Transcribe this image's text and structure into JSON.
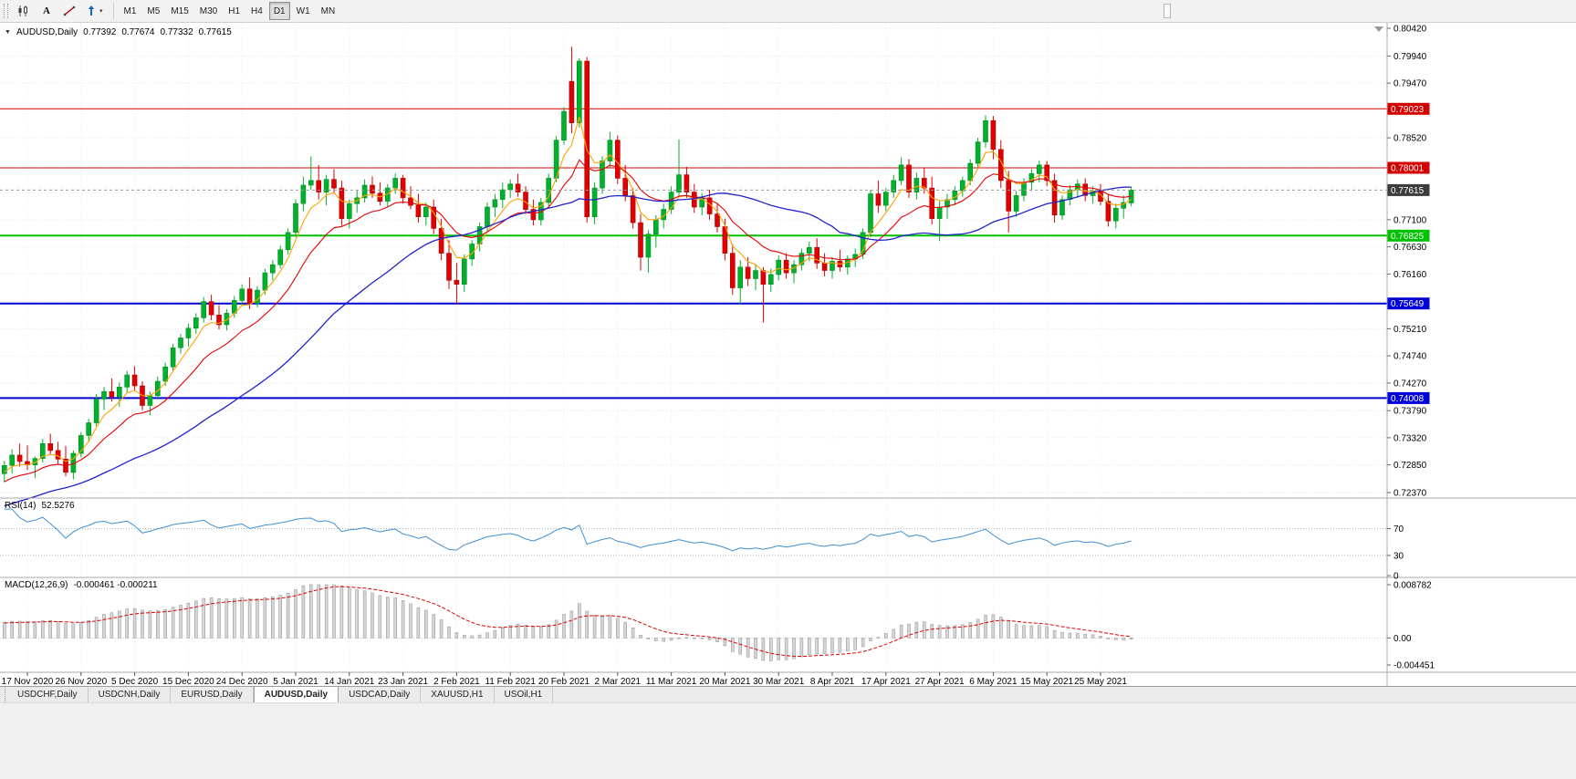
{
  "toolbar": {
    "timeframes": [
      "M1",
      "M5",
      "M15",
      "M30",
      "H1",
      "H4",
      "D1",
      "W1",
      "MN"
    ],
    "active_timeframe": "D1",
    "tool_icons": [
      "candlestick-chart-icon",
      "text-tool-icon",
      "trendline-tool-icon",
      "arrow-tools-dropdown"
    ]
  },
  "chart_header": {
    "symbol": "AUDUSD,Daily",
    "open": "0.77392",
    "high": "0.77674",
    "low": "0.77332",
    "close": "0.77615"
  },
  "chart_data": {
    "type": "candlestick",
    "symbol": "AUDUSD",
    "timeframe": "Daily",
    "colors": {
      "up": "#00b22b",
      "down": "#e10000",
      "up_border": "#008a22",
      "down_border": "#a80000",
      "grid": "#e7e7e7",
      "axis_text": "#000000"
    },
    "y_ticks": [
      0.8042,
      0.7994,
      0.7947,
      0.7899,
      0.7852,
      0.7804,
      0.7757,
      0.771,
      0.7663,
      0.7616,
      0.7569,
      0.7521,
      0.7474,
      0.7427,
      0.7379,
      0.7332,
      0.7285,
      0.7237
    ],
    "y_ticks_hidden": [
      0.7899,
      0.7804,
      0.7757,
      0.7569
    ],
    "x_labels": [
      "17 Nov 2020",
      "26 Nov 2020",
      "5 Dec 2020",
      "15 Dec 2020",
      "24 Dec 2020",
      "5 Jan 2021",
      "14 Jan 2021",
      "23 Jan 2021",
      "2 Feb 2021",
      "11 Feb 2021",
      "20 Feb 2021",
      "2 Mar 2021",
      "11 Mar 2021",
      "20 Mar 2021",
      "30 Mar 2021",
      "8 Apr 2021",
      "17 Apr 2021",
      "27 Apr 2021",
      "6 May 2021",
      "15 May 2021",
      "25 May 2021"
    ],
    "x_label_first_index": 3,
    "x_label_step": 7,
    "horizontal_lines": [
      {
        "price": 0.79023,
        "label": "0.79023",
        "color": "#d40000",
        "width": 1
      },
      {
        "price": 0.78001,
        "label": "0.78001",
        "color": "#d40000",
        "width": 1
      },
      {
        "price": 0.76825,
        "label": "0.76825",
        "color": "#00c200",
        "width": 2
      },
      {
        "price": 0.75649,
        "label": "0.75649",
        "color": "#0000d8",
        "width": 2
      },
      {
        "price": 0.74008,
        "label": "0.74008",
        "color": "#0000d8",
        "width": 2
      }
    ],
    "current_price": {
      "price": 0.77615,
      "label": "0.77615",
      "tag_color": "#3c3c3c"
    },
    "moving_averages": [
      {
        "type": "ema",
        "period": 5,
        "color": "#ffa200"
      },
      {
        "type": "ema",
        "period": 13,
        "color": "#e80000"
      },
      {
        "type": "sma",
        "period": 34,
        "color": "#2222cc"
      }
    ],
    "prehistory": {
      "start": 0.712,
      "end": 0.7275,
      "count": 40
    },
    "indicators": {
      "rsi": {
        "name": "RSI(14)",
        "period": 14,
        "value_label": "52.5276",
        "levels": [
          70,
          30
        ],
        "axis_labels": [
          70,
          30,
          0
        ],
        "color": "#3f8fd4"
      },
      "macd": {
        "name": "MACD(12,26,9)",
        "fast": 12,
        "slow": 26,
        "signal": 9,
        "value_labels": "-0.000461 -0.000211",
        "axis_max": 0.008782,
        "axis_zero": "0.00",
        "axis_min": -0.004451,
        "histogram_color": "#d6d6d6",
        "signal_color": "#e00000"
      }
    },
    "candles": [
      [
        0.727,
        0.7292,
        0.7255,
        0.7284
      ],
      [
        0.7284,
        0.7312,
        0.727,
        0.7302
      ],
      [
        0.7302,
        0.7322,
        0.7282,
        0.7291
      ],
      [
        0.7291,
        0.7319,
        0.7276,
        0.7285
      ],
      [
        0.7285,
        0.73,
        0.7262,
        0.7296
      ],
      [
        0.7296,
        0.733,
        0.7289,
        0.7322
      ],
      [
        0.7322,
        0.7339,
        0.7303,
        0.731
      ],
      [
        0.731,
        0.7325,
        0.7287,
        0.7295
      ],
      [
        0.7295,
        0.7318,
        0.7265,
        0.7272
      ],
      [
        0.7272,
        0.731,
        0.726,
        0.7305
      ],
      [
        0.7305,
        0.7342,
        0.7298,
        0.7336
      ],
      [
        0.7336,
        0.7365,
        0.7325,
        0.7358
      ],
      [
        0.7358,
        0.7408,
        0.7352,
        0.7399
      ],
      [
        0.7399,
        0.742,
        0.738,
        0.7412
      ],
      [
        0.7412,
        0.7435,
        0.7395,
        0.7403
      ],
      [
        0.7403,
        0.7428,
        0.7386,
        0.742
      ],
      [
        0.742,
        0.7448,
        0.741,
        0.7441
      ],
      [
        0.7441,
        0.7456,
        0.7414,
        0.7422
      ],
      [
        0.7422,
        0.743,
        0.738,
        0.7388
      ],
      [
        0.7388,
        0.7412,
        0.7371,
        0.7405
      ],
      [
        0.7405,
        0.7438,
        0.7398,
        0.743
      ],
      [
        0.743,
        0.7462,
        0.7422,
        0.7455
      ],
      [
        0.7455,
        0.7495,
        0.7448,
        0.7488
      ],
      [
        0.7488,
        0.7512,
        0.7478,
        0.7505
      ],
      [
        0.7505,
        0.753,
        0.749,
        0.7522
      ],
      [
        0.7522,
        0.7548,
        0.7512,
        0.754
      ],
      [
        0.754,
        0.7576,
        0.7532,
        0.7568
      ],
      [
        0.7568,
        0.758,
        0.7536,
        0.7545
      ],
      [
        0.7545,
        0.7562,
        0.752,
        0.7528
      ],
      [
        0.7528,
        0.7555,
        0.7518,
        0.7548
      ],
      [
        0.7548,
        0.7578,
        0.754,
        0.757
      ],
      [
        0.757,
        0.7598,
        0.7562,
        0.759
      ],
      [
        0.759,
        0.761,
        0.7555,
        0.7565
      ],
      [
        0.7565,
        0.7595,
        0.7558,
        0.7588
      ],
      [
        0.7588,
        0.7625,
        0.758,
        0.7618
      ],
      [
        0.7618,
        0.764,
        0.7605,
        0.7632
      ],
      [
        0.7632,
        0.7665,
        0.7625,
        0.7658
      ],
      [
        0.7658,
        0.7695,
        0.765,
        0.7688
      ],
      [
        0.7688,
        0.7745,
        0.768,
        0.7738
      ],
      [
        0.7738,
        0.7785,
        0.7725,
        0.777
      ],
      [
        0.777,
        0.782,
        0.7762,
        0.7778
      ],
      [
        0.7778,
        0.7805,
        0.7745,
        0.7758
      ],
      [
        0.7758,
        0.7788,
        0.7735,
        0.778
      ],
      [
        0.778,
        0.7798,
        0.7755,
        0.7765
      ],
      [
        0.7765,
        0.7778,
        0.77,
        0.7712
      ],
      [
        0.7712,
        0.7745,
        0.7695,
        0.7738
      ],
      [
        0.7738,
        0.7762,
        0.7722,
        0.7748
      ],
      [
        0.7748,
        0.778,
        0.774,
        0.777
      ],
      [
        0.777,
        0.7785,
        0.7748,
        0.7756
      ],
      [
        0.7756,
        0.7775,
        0.7735,
        0.7742
      ],
      [
        0.7742,
        0.7772,
        0.7732,
        0.7765
      ],
      [
        0.7765,
        0.779,
        0.7755,
        0.7782
      ],
      [
        0.7782,
        0.7788,
        0.7738,
        0.7748
      ],
      [
        0.7748,
        0.7768,
        0.7728,
        0.7735
      ],
      [
        0.7735,
        0.7755,
        0.7705,
        0.7715
      ],
      [
        0.7715,
        0.774,
        0.77,
        0.7732
      ],
      [
        0.7732,
        0.7745,
        0.7685,
        0.7695
      ],
      [
        0.7695,
        0.7712,
        0.764,
        0.7652
      ],
      [
        0.7652,
        0.7675,
        0.759,
        0.7605
      ],
      [
        0.7605,
        0.7635,
        0.7563,
        0.7598
      ],
      [
        0.7598,
        0.765,
        0.7585,
        0.7642
      ],
      [
        0.7642,
        0.7675,
        0.763,
        0.7668
      ],
      [
        0.7668,
        0.7705,
        0.7655,
        0.7698
      ],
      [
        0.7698,
        0.774,
        0.769,
        0.7732
      ],
      [
        0.7732,
        0.7755,
        0.7715,
        0.7745
      ],
      [
        0.7745,
        0.7775,
        0.773,
        0.7762
      ],
      [
        0.7762,
        0.778,
        0.7748,
        0.7772
      ],
      [
        0.7772,
        0.779,
        0.775,
        0.7758
      ],
      [
        0.7758,
        0.7768,
        0.772,
        0.7728
      ],
      [
        0.7728,
        0.7745,
        0.77,
        0.771
      ],
      [
        0.771,
        0.7748,
        0.77,
        0.774
      ],
      [
        0.774,
        0.779,
        0.7732,
        0.7782
      ],
      [
        0.7782,
        0.7855,
        0.7775,
        0.7848
      ],
      [
        0.7848,
        0.7905,
        0.784,
        0.7898
      ],
      [
        0.795,
        0.801,
        0.786,
        0.7878
      ],
      [
        0.7878,
        0.799,
        0.787,
        0.7985
      ],
      [
        0.7985,
        0.7992,
        0.7705,
        0.7715
      ],
      [
        0.7715,
        0.7775,
        0.7702,
        0.7765
      ],
      [
        0.7765,
        0.782,
        0.7755,
        0.7812
      ],
      [
        0.7812,
        0.7862,
        0.78,
        0.7848
      ],
      [
        0.7848,
        0.7856,
        0.7772,
        0.7782
      ],
      [
        0.7782,
        0.7805,
        0.7742,
        0.7752
      ],
      [
        0.7752,
        0.7765,
        0.7695,
        0.7705
      ],
      [
        0.7705,
        0.772,
        0.7622,
        0.7645
      ],
      [
        0.7645,
        0.7692,
        0.7618,
        0.7685
      ],
      [
        0.7685,
        0.7718,
        0.7662,
        0.771
      ],
      [
        0.771,
        0.7738,
        0.7695,
        0.7728
      ],
      [
        0.7728,
        0.7768,
        0.772,
        0.7758
      ],
      [
        0.7758,
        0.7849,
        0.775,
        0.7788
      ],
      [
        0.7788,
        0.7802,
        0.7748,
        0.7758
      ],
      [
        0.7758,
        0.7772,
        0.7722,
        0.7732
      ],
      [
        0.7732,
        0.7756,
        0.7718,
        0.7748
      ],
      [
        0.7748,
        0.7762,
        0.771,
        0.772
      ],
      [
        0.772,
        0.7738,
        0.7688,
        0.7698
      ],
      [
        0.7698,
        0.7712,
        0.764,
        0.7652
      ],
      [
        0.7652,
        0.7668,
        0.758,
        0.7592
      ],
      [
        0.7592,
        0.764,
        0.7564,
        0.7628
      ],
      [
        0.7628,
        0.7645,
        0.7595,
        0.7608
      ],
      [
        0.7608,
        0.7632,
        0.7588,
        0.7622
      ],
      [
        0.7622,
        0.7628,
        0.7532,
        0.7598
      ],
      [
        0.7598,
        0.7625,
        0.7585,
        0.7615
      ],
      [
        0.7615,
        0.7648,
        0.7605,
        0.764
      ],
      [
        0.764,
        0.7652,
        0.7608,
        0.7618
      ],
      [
        0.7618,
        0.764,
        0.76,
        0.7632
      ],
      [
        0.7632,
        0.766,
        0.7622,
        0.7652
      ],
      [
        0.7652,
        0.7672,
        0.7638,
        0.7662
      ],
      [
        0.7662,
        0.7678,
        0.7625,
        0.7635
      ],
      [
        0.7635,
        0.7652,
        0.7612,
        0.7622
      ],
      [
        0.7622,
        0.7645,
        0.7608,
        0.7638
      ],
      [
        0.7638,
        0.7658,
        0.762,
        0.7628
      ],
      [
        0.7628,
        0.7648,
        0.7615,
        0.7642
      ],
      [
        0.7642,
        0.766,
        0.7628,
        0.765
      ],
      [
        0.765,
        0.7695,
        0.7642,
        0.7688
      ],
      [
        0.7688,
        0.7762,
        0.768,
        0.7755
      ],
      [
        0.7755,
        0.7778,
        0.7722,
        0.7735
      ],
      [
        0.7735,
        0.7765,
        0.7725,
        0.7758
      ],
      [
        0.7758,
        0.7788,
        0.7748,
        0.7778
      ],
      [
        0.7778,
        0.7818,
        0.777,
        0.7805
      ],
      [
        0.7805,
        0.7815,
        0.7748,
        0.7758
      ],
      [
        0.7758,
        0.7792,
        0.7745,
        0.7782
      ],
      [
        0.7782,
        0.78,
        0.7755,
        0.7765
      ],
      [
        0.7765,
        0.7785,
        0.7702,
        0.7712
      ],
      [
        0.7712,
        0.7742,
        0.7673,
        0.7732
      ],
      [
        0.7732,
        0.7755,
        0.7712,
        0.7745
      ],
      [
        0.7745,
        0.7768,
        0.7735,
        0.776
      ],
      [
        0.776,
        0.7785,
        0.775,
        0.7778
      ],
      [
        0.7778,
        0.7815,
        0.777,
        0.7808
      ],
      [
        0.7808,
        0.7852,
        0.78,
        0.7845
      ],
      [
        0.7845,
        0.7891,
        0.7835,
        0.7882
      ],
      [
        0.7882,
        0.789,
        0.7815,
        0.7832
      ],
      [
        0.7832,
        0.7848,
        0.7765,
        0.7778
      ],
      [
        0.7778,
        0.7795,
        0.7688,
        0.7725
      ],
      [
        0.7725,
        0.776,
        0.7715,
        0.7752
      ],
      [
        0.7752,
        0.7782,
        0.7742,
        0.7775
      ],
      [
        0.7775,
        0.7798,
        0.776,
        0.779
      ],
      [
        0.779,
        0.7813,
        0.7775,
        0.7805
      ],
      [
        0.7805,
        0.7812,
        0.7768,
        0.7778
      ],
      [
        0.7778,
        0.779,
        0.7705,
        0.7718
      ],
      [
        0.7718,
        0.7752,
        0.771,
        0.7745
      ],
      [
        0.7745,
        0.777,
        0.7735,
        0.7762
      ],
      [
        0.7762,
        0.778,
        0.7748,
        0.7772
      ],
      [
        0.7772,
        0.7782,
        0.7742,
        0.7752
      ],
      [
        0.7752,
        0.7768,
        0.7738,
        0.776
      ],
      [
        0.776,
        0.7772,
        0.7735,
        0.7742
      ],
      [
        0.7742,
        0.7755,
        0.7698,
        0.7708
      ],
      [
        0.7708,
        0.7738,
        0.7695,
        0.773
      ],
      [
        0.773,
        0.7752,
        0.7712,
        0.774
      ],
      [
        0.77392,
        0.77674,
        0.77332,
        0.77615
      ]
    ]
  },
  "tabs": {
    "items": [
      "USDCHF,Daily",
      "USDCNH,Daily",
      "EURUSD,Daily",
      "AUDUSD,Daily",
      "USDCAD,Daily",
      "XAUUSD,H1",
      "USOil,H1"
    ],
    "active": "AUDUSD,Daily"
  }
}
